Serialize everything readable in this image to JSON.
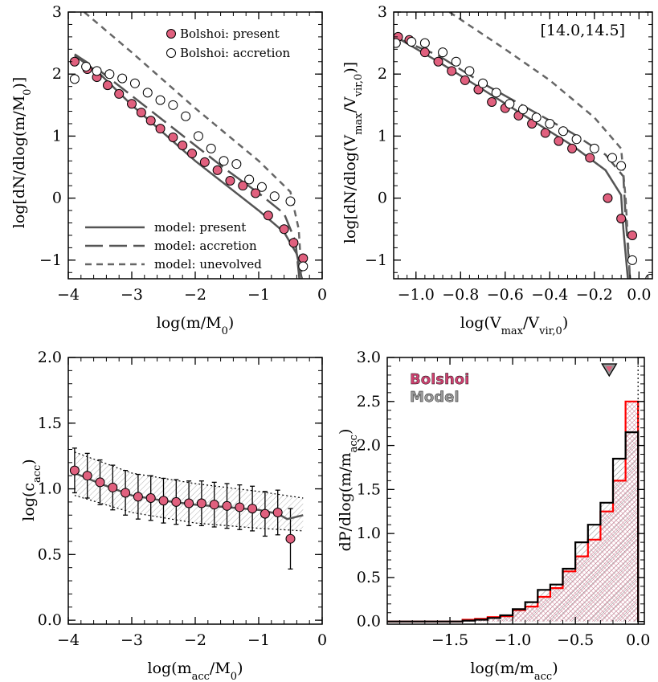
{
  "colors": {
    "point_fill": "#e0607e",
    "model_line": "#555555",
    "unevolved_line": "#666666",
    "hist_red": "#ff0000",
    "hist_black": "#000000",
    "hatch_pink": "#c87088",
    "band_gray": "#bbbbbb"
  },
  "chart_data": [
    {
      "id": "panel_a",
      "type": "line",
      "xlabel": "log(m/M0)",
      "ylabel": "log[dN/dlog(m/M0)]",
      "xlim": [
        -4.0,
        0.0
      ],
      "ylim": [
        -1.3,
        3.0
      ],
      "xticks": [
        -4,
        -3,
        -2,
        -1,
        0
      ],
      "xtick_labels": [
        "−4",
        "−3",
        "−2",
        "−1",
        "0"
      ],
      "yticks": [
        -1,
        0,
        1,
        2,
        3
      ],
      "ytick_labels": [
        "−1",
        "0",
        "1",
        "2",
        "3"
      ],
      "legend": [
        {
          "label": "Bolshoi: present",
          "marker": "filled-circle"
        },
        {
          "label": "Bolshoi: accretion",
          "marker": "open-circle"
        }
      ],
      "line_legend": [
        {
          "label": "model: present",
          "style": "solid"
        },
        {
          "label": "model: accretion",
          "style": "long-dash"
        },
        {
          "label": "model: unevolved",
          "style": "short-dash"
        }
      ],
      "series": [
        {
          "name": "Bolshoi: present",
          "kind": "points",
          "marker": "filled",
          "x": [
            -3.9,
            -3.7,
            -3.55,
            -3.38,
            -3.2,
            -3.0,
            -2.85,
            -2.7,
            -2.55,
            -2.35,
            -2.2,
            -2.05,
            -1.85,
            -1.65,
            -1.45,
            -1.25,
            -1.05,
            -0.85,
            -0.6,
            -0.45,
            -0.3
          ],
          "y": [
            2.2,
            2.08,
            1.95,
            1.82,
            1.68,
            1.52,
            1.38,
            1.25,
            1.12,
            0.98,
            0.85,
            0.72,
            0.58,
            0.45,
            0.28,
            0.2,
            0.08,
            -0.28,
            -0.5,
            -0.72,
            -0.97
          ]
        },
        {
          "name": "Bolshoi: accretion",
          "kind": "points",
          "marker": "open",
          "x": [
            -3.9,
            -3.72,
            -3.55,
            -3.35,
            -3.15,
            -2.95,
            -2.75,
            -2.55,
            -2.35,
            -2.15,
            -1.95,
            -1.75,
            -1.55,
            -1.35,
            -1.15,
            -0.95,
            -0.75,
            -0.5,
            -0.3
          ],
          "y": [
            1.92,
            2.12,
            2.05,
            2.0,
            1.93,
            1.85,
            1.7,
            1.58,
            1.5,
            1.32,
            1.0,
            0.8,
            0.6,
            0.55,
            0.3,
            0.18,
            0.03,
            -0.05,
            -1.1
          ]
        },
        {
          "name": "model: present",
          "kind": "line",
          "style": "solid",
          "x": [
            -3.9,
            -3.5,
            -3.0,
            -2.5,
            -2.0,
            -1.5,
            -1.0,
            -0.6,
            -0.4,
            -0.32
          ],
          "y": [
            2.3,
            2.0,
            1.5,
            1.05,
            0.6,
            0.2,
            -0.2,
            -0.55,
            -0.9,
            -1.3
          ]
        },
        {
          "name": "model: accretion",
          "kind": "line",
          "style": "long-dash",
          "x": [
            -3.9,
            -3.5,
            -3.0,
            -2.5,
            -2.0,
            -1.5,
            -1.0,
            -0.6,
            -0.42,
            -0.36
          ],
          "y": [
            2.32,
            2.05,
            1.65,
            1.25,
            0.85,
            0.45,
            0.08,
            -0.25,
            -0.7,
            -1.3
          ]
        },
        {
          "name": "model: unevolved",
          "kind": "line",
          "style": "short-dash",
          "x": [
            -3.75,
            -3.0,
            -2.0,
            -1.0,
            -0.5,
            -0.37,
            -0.32
          ],
          "y": [
            3.0,
            2.35,
            1.45,
            0.6,
            0.1,
            -0.5,
            -1.3
          ]
        }
      ]
    },
    {
      "id": "panel_b",
      "type": "line",
      "xlabel": "log(Vmax/Vvir,0)",
      "ylabel": "log[dN/dlog(Vmax/Vvir,0)]",
      "xlim": [
        -1.1,
        0.06
      ],
      "ylim": [
        -1.3,
        3.0
      ],
      "xticks": [
        -1.0,
        -0.8,
        -0.6,
        -0.4,
        -0.2,
        0.0
      ],
      "xtick_labels": [
        "−1.0",
        "−0.8",
        "−0.6",
        "−0.4",
        "−0.2",
        "0.0"
      ],
      "yticks": [
        -1,
        0,
        1,
        2,
        3
      ],
      "ytick_labels": [
        "−1",
        "0",
        "1",
        "2",
        "3"
      ],
      "annotation": "[14.0,14.5]",
      "series": [
        {
          "name": "Bolshoi: present",
          "kind": "points",
          "marker": "filled",
          "x": [
            -1.08,
            -1.03,
            -0.96,
            -0.9,
            -0.84,
            -0.78,
            -0.72,
            -0.66,
            -0.6,
            -0.54,
            -0.48,
            -0.42,
            -0.36,
            -0.3,
            -0.22,
            -0.14,
            -0.08,
            -0.03
          ],
          "y": [
            2.6,
            2.55,
            2.35,
            2.2,
            2.05,
            1.9,
            1.75,
            1.55,
            1.45,
            1.33,
            1.2,
            1.05,
            0.92,
            0.8,
            0.65,
            0.0,
            -0.33,
            -0.6
          ]
        },
        {
          "name": "Bolshoi: accretion",
          "kind": "points",
          "marker": "open",
          "x": [
            -1.09,
            -1.02,
            -0.96,
            -0.88,
            -0.82,
            -0.76,
            -0.7,
            -0.64,
            -0.58,
            -0.52,
            -0.46,
            -0.4,
            -0.34,
            -0.28,
            -0.2,
            -0.12,
            -0.08,
            -0.03,
            0.05
          ],
          "y": [
            2.5,
            2.52,
            2.5,
            2.35,
            2.2,
            2.05,
            1.85,
            1.7,
            1.52,
            1.43,
            1.3,
            1.2,
            1.08,
            0.95,
            0.8,
            0.65,
            0.52,
            -1.0,
            -1.3
          ]
        },
        {
          "name": "model: present",
          "kind": "line",
          "style": "solid",
          "x": [
            -1.1,
            -0.9,
            -0.7,
            -0.5,
            -0.3,
            -0.15,
            -0.08,
            -0.07,
            -0.05
          ],
          "y": [
            2.62,
            2.2,
            1.75,
            1.3,
            0.85,
            0.45,
            0.05,
            -0.5,
            -1.3
          ]
        },
        {
          "name": "model: accretion",
          "kind": "line",
          "style": "long-dash",
          "x": [
            -1.1,
            -0.9,
            -0.7,
            -0.5,
            -0.3,
            -0.15,
            -0.07,
            -0.06,
            -0.04
          ],
          "y": [
            2.6,
            2.3,
            1.85,
            1.45,
            1.05,
            0.7,
            0.35,
            -0.3,
            -1.3
          ]
        },
        {
          "name": "model: unevolved",
          "kind": "line",
          "style": "short-dash",
          "x": [
            -0.85,
            -0.6,
            -0.4,
            -0.2,
            -0.08,
            -0.06,
            -0.04
          ],
          "y": [
            3.0,
            2.4,
            1.9,
            1.3,
            0.8,
            0.0,
            -1.3
          ]
        }
      ]
    },
    {
      "id": "panel_c",
      "type": "scatter",
      "xlabel": "log(macc/M0)",
      "ylabel": "log(cacc)",
      "xlim": [
        -4.0,
        0.0
      ],
      "ylim": [
        -0.03,
        2.0
      ],
      "xticks": [
        -4,
        -3,
        -2,
        -1,
        0
      ],
      "xtick_labels": [
        "−4",
        "−3",
        "−2",
        "−1",
        "0"
      ],
      "yticks": [
        0.0,
        0.5,
        1.0,
        1.5,
        2.0
      ],
      "ytick_labels": [
        "0.0",
        "0.5",
        "1.0",
        "1.5",
        "2.0"
      ],
      "points": {
        "x": [
          -3.9,
          -3.7,
          -3.5,
          -3.3,
          -3.1,
          -2.9,
          -2.7,
          -2.5,
          -2.3,
          -2.1,
          -1.9,
          -1.7,
          -1.5,
          -1.3,
          -1.1,
          -0.9,
          -0.7,
          -0.5
        ],
        "y": [
          1.14,
          1.1,
          1.05,
          1.01,
          0.97,
          0.94,
          0.93,
          0.91,
          0.9,
          0.89,
          0.89,
          0.88,
          0.87,
          0.86,
          0.85,
          0.81,
          0.82,
          0.62
        ],
        "err": [
          0.17,
          0.17,
          0.17,
          0.17,
          0.17,
          0.17,
          0.17,
          0.17,
          0.17,
          0.17,
          0.17,
          0.17,
          0.17,
          0.17,
          0.17,
          0.17,
          0.17,
          0.23
        ]
      },
      "model": {
        "x": [
          -3.9,
          -3.5,
          -3.0,
          -2.5,
          -2.0,
          -1.5,
          -1.0,
          -0.7,
          -0.55,
          -0.3
        ],
        "y": [
          1.12,
          1.04,
          0.95,
          0.91,
          0.88,
          0.86,
          0.84,
          0.81,
          0.77,
          0.8
        ]
      },
      "band": {
        "x": [
          -3.9,
          -3.0,
          -2.0,
          -1.0,
          -0.3
        ],
        "upper": [
          1.28,
          1.12,
          1.04,
          0.98,
          0.93
        ],
        "lower": [
          0.95,
          0.82,
          0.74,
          0.7,
          0.68
        ]
      }
    },
    {
      "id": "panel_d",
      "type": "bar",
      "xlabel": "log(m/macc)",
      "ylabel": "dP/dlog(m/macc)",
      "xlim": [
        -2.0,
        0.05
      ],
      "ylim": [
        -0.03,
        3.0
      ],
      "xticks": [
        -1.5,
        -1.0,
        -0.5,
        0.0
      ],
      "xtick_labels": [
        "−1.5",
        "−1.0",
        "−0.5",
        "0.0"
      ],
      "yticks": [
        0.0,
        0.5,
        1.0,
        1.5,
        2.0,
        2.5,
        3.0
      ],
      "ytick_labels": [
        "0.0",
        "0.5",
        "1.0",
        "1.5",
        "2.0",
        "2.5",
        "3.0"
      ],
      "legend": [
        {
          "label": "Bolshoi",
          "color": "#ff0000"
        },
        {
          "label": "Model",
          "color": "#000000"
        }
      ],
      "marker_x": -0.23,
      "vline_x": 0.0,
      "bin_edges": [
        -2.0,
        -1.9,
        -1.8,
        -1.7,
        -1.6,
        -1.5,
        -1.4,
        -1.3,
        -1.2,
        -1.1,
        -1.0,
        -0.9,
        -0.8,
        -0.7,
        -0.6,
        -0.5,
        -0.4,
        -0.3,
        -0.2,
        -0.1,
        0.0
      ],
      "series": [
        {
          "name": "Bolshoi",
          "values": [
            0.0,
            0.0,
            0.0,
            0.0,
            0.0,
            0.0,
            0.02,
            0.03,
            0.05,
            0.06,
            0.13,
            0.17,
            0.28,
            0.38,
            0.57,
            0.74,
            0.93,
            1.25,
            1.6,
            2.5
          ]
        },
        {
          "name": "Model",
          "values": [
            0.0,
            0.0,
            0.0,
            0.0,
            0.0,
            0.0,
            0.01,
            0.02,
            0.04,
            0.07,
            0.14,
            0.22,
            0.36,
            0.42,
            0.6,
            0.9,
            1.1,
            1.35,
            1.85,
            2.15
          ]
        }
      ]
    }
  ]
}
